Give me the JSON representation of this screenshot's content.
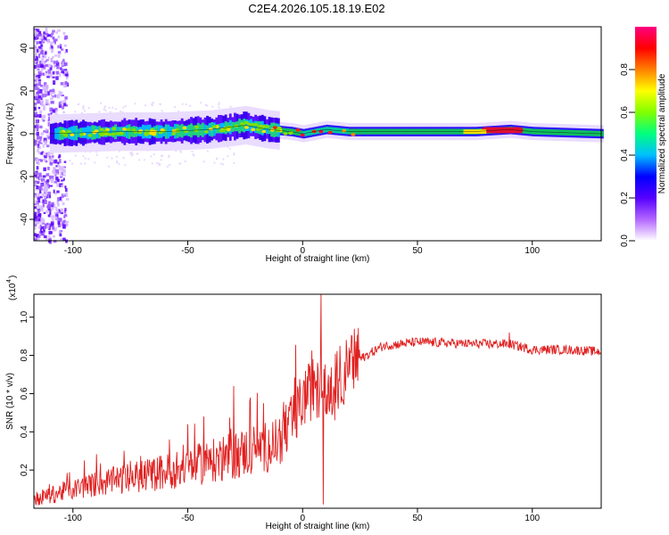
{
  "title": "C2E4.2026.105.18.19.E02",
  "chart_data": [
    {
      "type": "heatmap",
      "xlabel": "Height of straight line (km)",
      "ylabel": "Frequency (Hz)",
      "xlim": [
        -117,
        130
      ],
      "ylim": [
        -50,
        50
      ],
      "xticks": [
        -100,
        -50,
        0,
        50,
        100
      ],
      "yticks": [
        -40,
        -20,
        0,
        20,
        40
      ],
      "colorbar": {
        "label": "Normalized spectral amplitude",
        "range": [
          0,
          1
        ],
        "ticks": [
          "0.0",
          "0.2",
          "0.4",
          "0.6",
          "0.8"
        ],
        "tick_values": [
          0.0,
          0.2,
          0.4,
          0.6,
          0.8
        ],
        "colors": [
          "#ffffff",
          "#b366ff",
          "#5500ff",
          "#0000ff",
          "#00bfff",
          "#00ff80",
          "#80ff00",
          "#ffff00",
          "#ff8000",
          "#ff0000",
          "#ff0080"
        ]
      },
      "ridge": {
        "description_values_hz_at_km": [
          [
            -110,
            0
          ],
          [
            -80,
            1
          ],
          [
            -60,
            1
          ],
          [
            -40,
            2
          ],
          [
            -25,
            4
          ],
          [
            -15,
            2
          ],
          [
            -5,
            1
          ],
          [
            0,
            0
          ],
          [
            5,
            1
          ],
          [
            10,
            2
          ],
          [
            20,
            1
          ],
          [
            50,
            1
          ],
          [
            75,
            1
          ],
          [
            90,
            2
          ],
          [
            100,
            1
          ],
          [
            130,
            0
          ]
        ]
      }
    },
    {
      "type": "line",
      "xlabel": "Height of straight line (km)",
      "ylabel": "SNR (10 * v/v)",
      "yscale_label": "(x10",
      "yscale_exp": "4",
      "xlim": [
        -117,
        130
      ],
      "ylim": [
        0,
        1.12
      ],
      "xticks": [
        -100,
        -50,
        0,
        50,
        100
      ],
      "yticks": [
        0.2,
        0.4,
        0.6,
        0.8,
        1.0
      ],
      "series_color": "#e02020",
      "envelope": [
        [
          -117,
          0.04
        ],
        [
          -105,
          0.08
        ],
        [
          -90,
          0.12
        ],
        [
          -75,
          0.15
        ],
        [
          -60,
          0.18
        ],
        [
          -45,
          0.22
        ],
        [
          -30,
          0.26
        ],
        [
          -20,
          0.3
        ],
        [
          -12,
          0.32
        ],
        [
          -5,
          0.42
        ],
        [
          0,
          0.55
        ],
        [
          5,
          0.62
        ],
        [
          10,
          0.55
        ],
        [
          15,
          0.65
        ],
        [
          20,
          0.72
        ],
        [
          25,
          0.78
        ],
        [
          35,
          0.85
        ],
        [
          50,
          0.87
        ],
        [
          75,
          0.86
        ],
        [
          90,
          0.86
        ],
        [
          100,
          0.83
        ],
        [
          115,
          0.83
        ],
        [
          130,
          0.82
        ]
      ],
      "spikes": [
        [
          -95,
          0.25
        ],
        [
          -58,
          0.36
        ],
        [
          -50,
          0.44
        ],
        [
          -43,
          0.48
        ],
        [
          -30,
          0.64
        ],
        [
          -23,
          0.56
        ],
        [
          -17,
          0.55
        ],
        [
          -8,
          0.36
        ],
        [
          2,
          0.69
        ],
        [
          8,
          1.12
        ],
        [
          9,
          0.02
        ],
        [
          14,
          0.46
        ],
        [
          90,
          0.92
        ]
      ]
    }
  ]
}
